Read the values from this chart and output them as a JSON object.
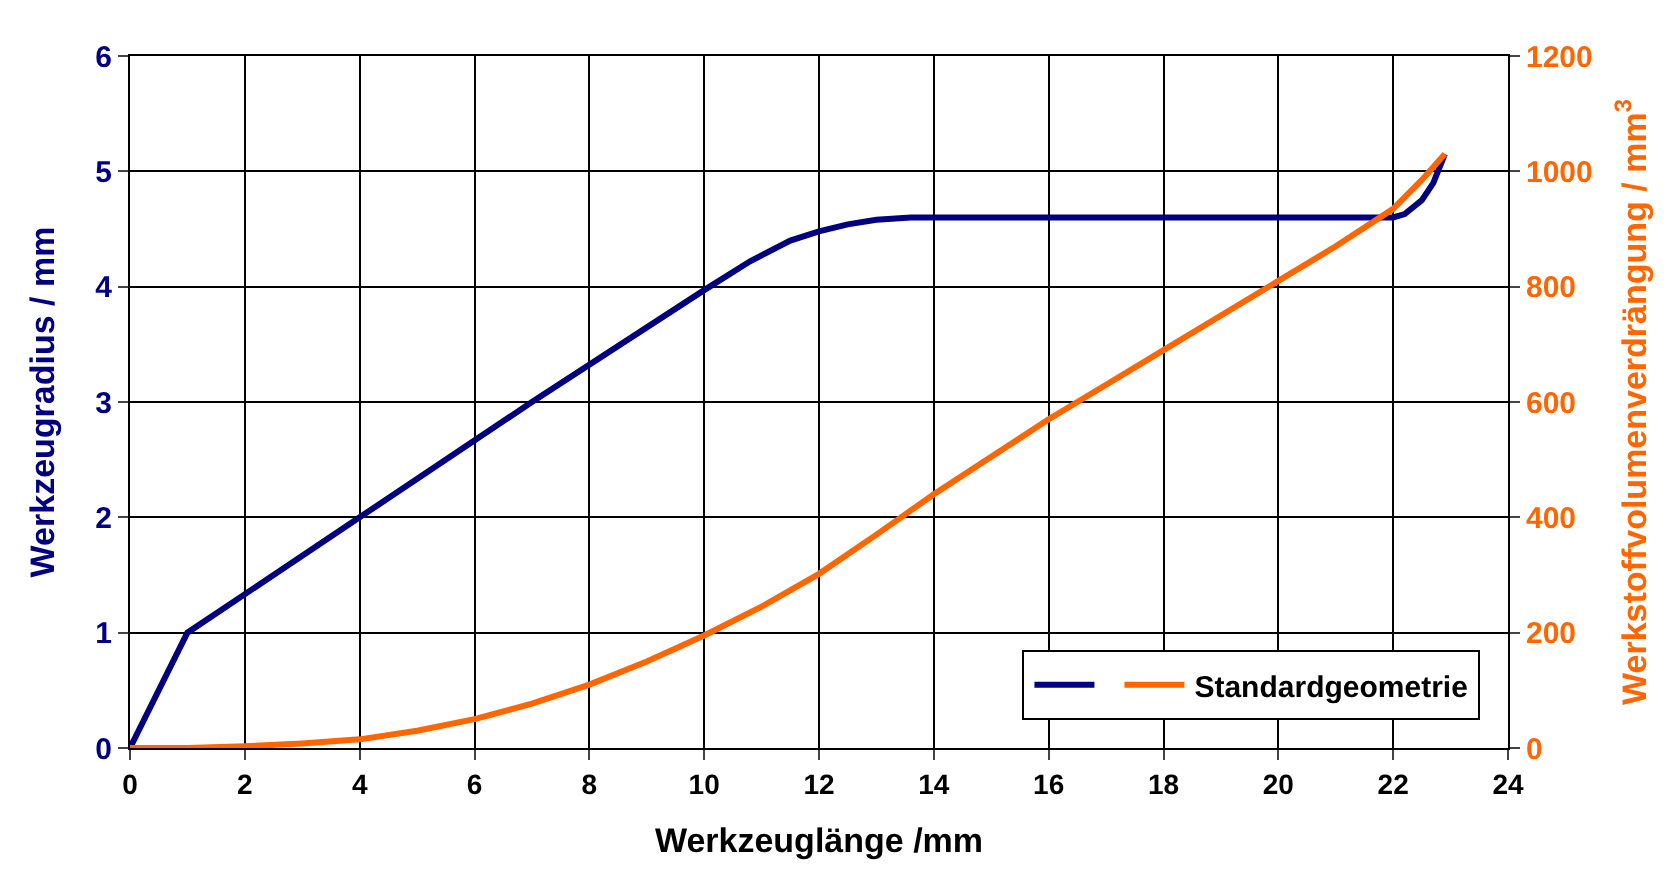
{
  "chart_data": {
    "type": "line",
    "xlabel": "Werkzeuglänge /mm",
    "ylabel": "Werkzeugradius / mm",
    "y2label": "Werkstoffvolumenverdrängung / mm$^{3}$",
    "xlim": [
      0,
      24
    ],
    "xticks": [
      0,
      2,
      4,
      6,
      8,
      10,
      12,
      14,
      16,
      18,
      20,
      22,
      24
    ],
    "ylim": [
      0,
      6
    ],
    "yticks": [
      0,
      1,
      2,
      3,
      4,
      5,
      6
    ],
    "y2lim": [
      0,
      1200
    ],
    "y2ticks": [
      0,
      200,
      400,
      600,
      800,
      1000,
      1200
    ],
    "grid": true,
    "legend": "bottom right",
    "marker": "none",
    "line_style": "solid",
    "series": [
      {
        "color": "#000080",
        "x": [
          0,
          1,
          4,
          7,
          10,
          10.8,
          11.5,
          12,
          12.5,
          13,
          13.6,
          16,
          20,
          22,
          22.2,
          22.5,
          22.7,
          22.9
        ],
        "values": [
          0,
          1,
          2,
          3,
          3.97,
          4.22,
          4.4,
          4.48,
          4.54,
          4.58,
          4.6,
          4.6,
          4.6,
          4.6,
          4.63,
          4.75,
          4.9,
          5.15
        ]
      },
      {
        "name": "Standardgeometrie",
        "color": "#ff6600",
        "axis": "y2",
        "x": [
          0,
          1,
          2,
          3,
          4,
          5,
          6,
          7,
          8,
          9,
          10,
          11,
          12,
          13,
          14,
          15,
          16,
          17,
          18,
          19,
          20,
          21,
          22,
          22.5,
          22.9
        ],
        "values": [
          0,
          0,
          3,
          8,
          15,
          30,
          50,
          77,
          110,
          150,
          195,
          245,
          302,
          370,
          440,
          505,
          570,
          630,
          690,
          750,
          810,
          870,
          935,
          985,
          1030
        ]
      }
    ]
  }
}
